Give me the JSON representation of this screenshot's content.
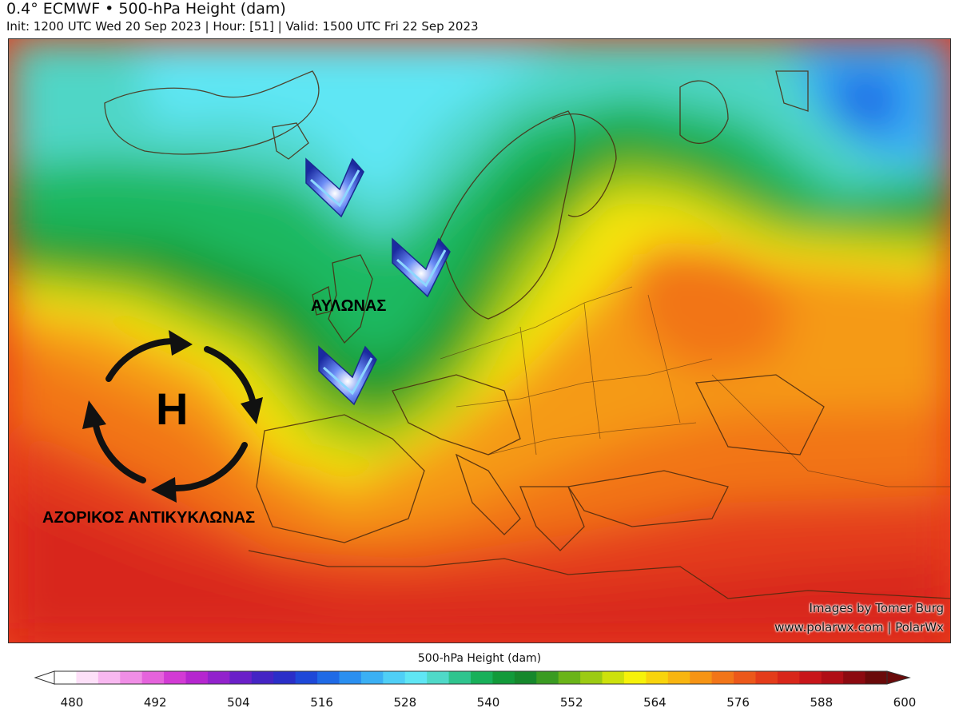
{
  "header": {
    "title": "0.4° ECMWF • 500-hPa Height (dam)",
    "subtitle": "Init: 1200 UTC Wed 20 Sep 2023 | Hour: [51] | Valid: 1500 UTC Fri 22 Sep 2023"
  },
  "annotations": {
    "trough_label": "ΑΥΛΩΝΑΣ",
    "high_symbol": "H",
    "high_label": "ΑΖΟΡΙΚΟΣ ΑΝΤΙΚΥΚΛΩΝΑΣ"
  },
  "credits": {
    "line1": "Images by Tomer Burg",
    "line2": "www.polarwx.com | PolarWx"
  },
  "colorbar": {
    "title": "500-hPa Height (dam)",
    "ticks": [
      "480",
      "492",
      "504",
      "516",
      "528",
      "540",
      "552",
      "564",
      "576",
      "588",
      "600"
    ],
    "colors": [
      "#ffffff",
      "#fde0f8",
      "#f8b8f0",
      "#f08ee6",
      "#e563dc",
      "#d23bd4",
      "#b526cf",
      "#9222cc",
      "#6a20c8",
      "#4424c4",
      "#2a2ec8",
      "#1e48d8",
      "#1f6ae6",
      "#2a8ff0",
      "#3bb0f4",
      "#4fcff6",
      "#5fe6f4",
      "#4fd9c8",
      "#2fc48e",
      "#18b05a",
      "#129a3a",
      "#16882c",
      "#3a9b22",
      "#6ab418",
      "#9ccb12",
      "#cde10c",
      "#f6f20a",
      "#f8d40c",
      "#f8b510",
      "#f69414",
      "#f27518",
      "#ec581a",
      "#e43c1a",
      "#d8261a",
      "#c8161a",
      "#b00e16",
      "#8c0a10",
      "#6a0a0a"
    ]
  },
  "colors": {
    "trough_arrow": "#2a3fc8",
    "arrow_highlight": "#8dd6ff"
  }
}
